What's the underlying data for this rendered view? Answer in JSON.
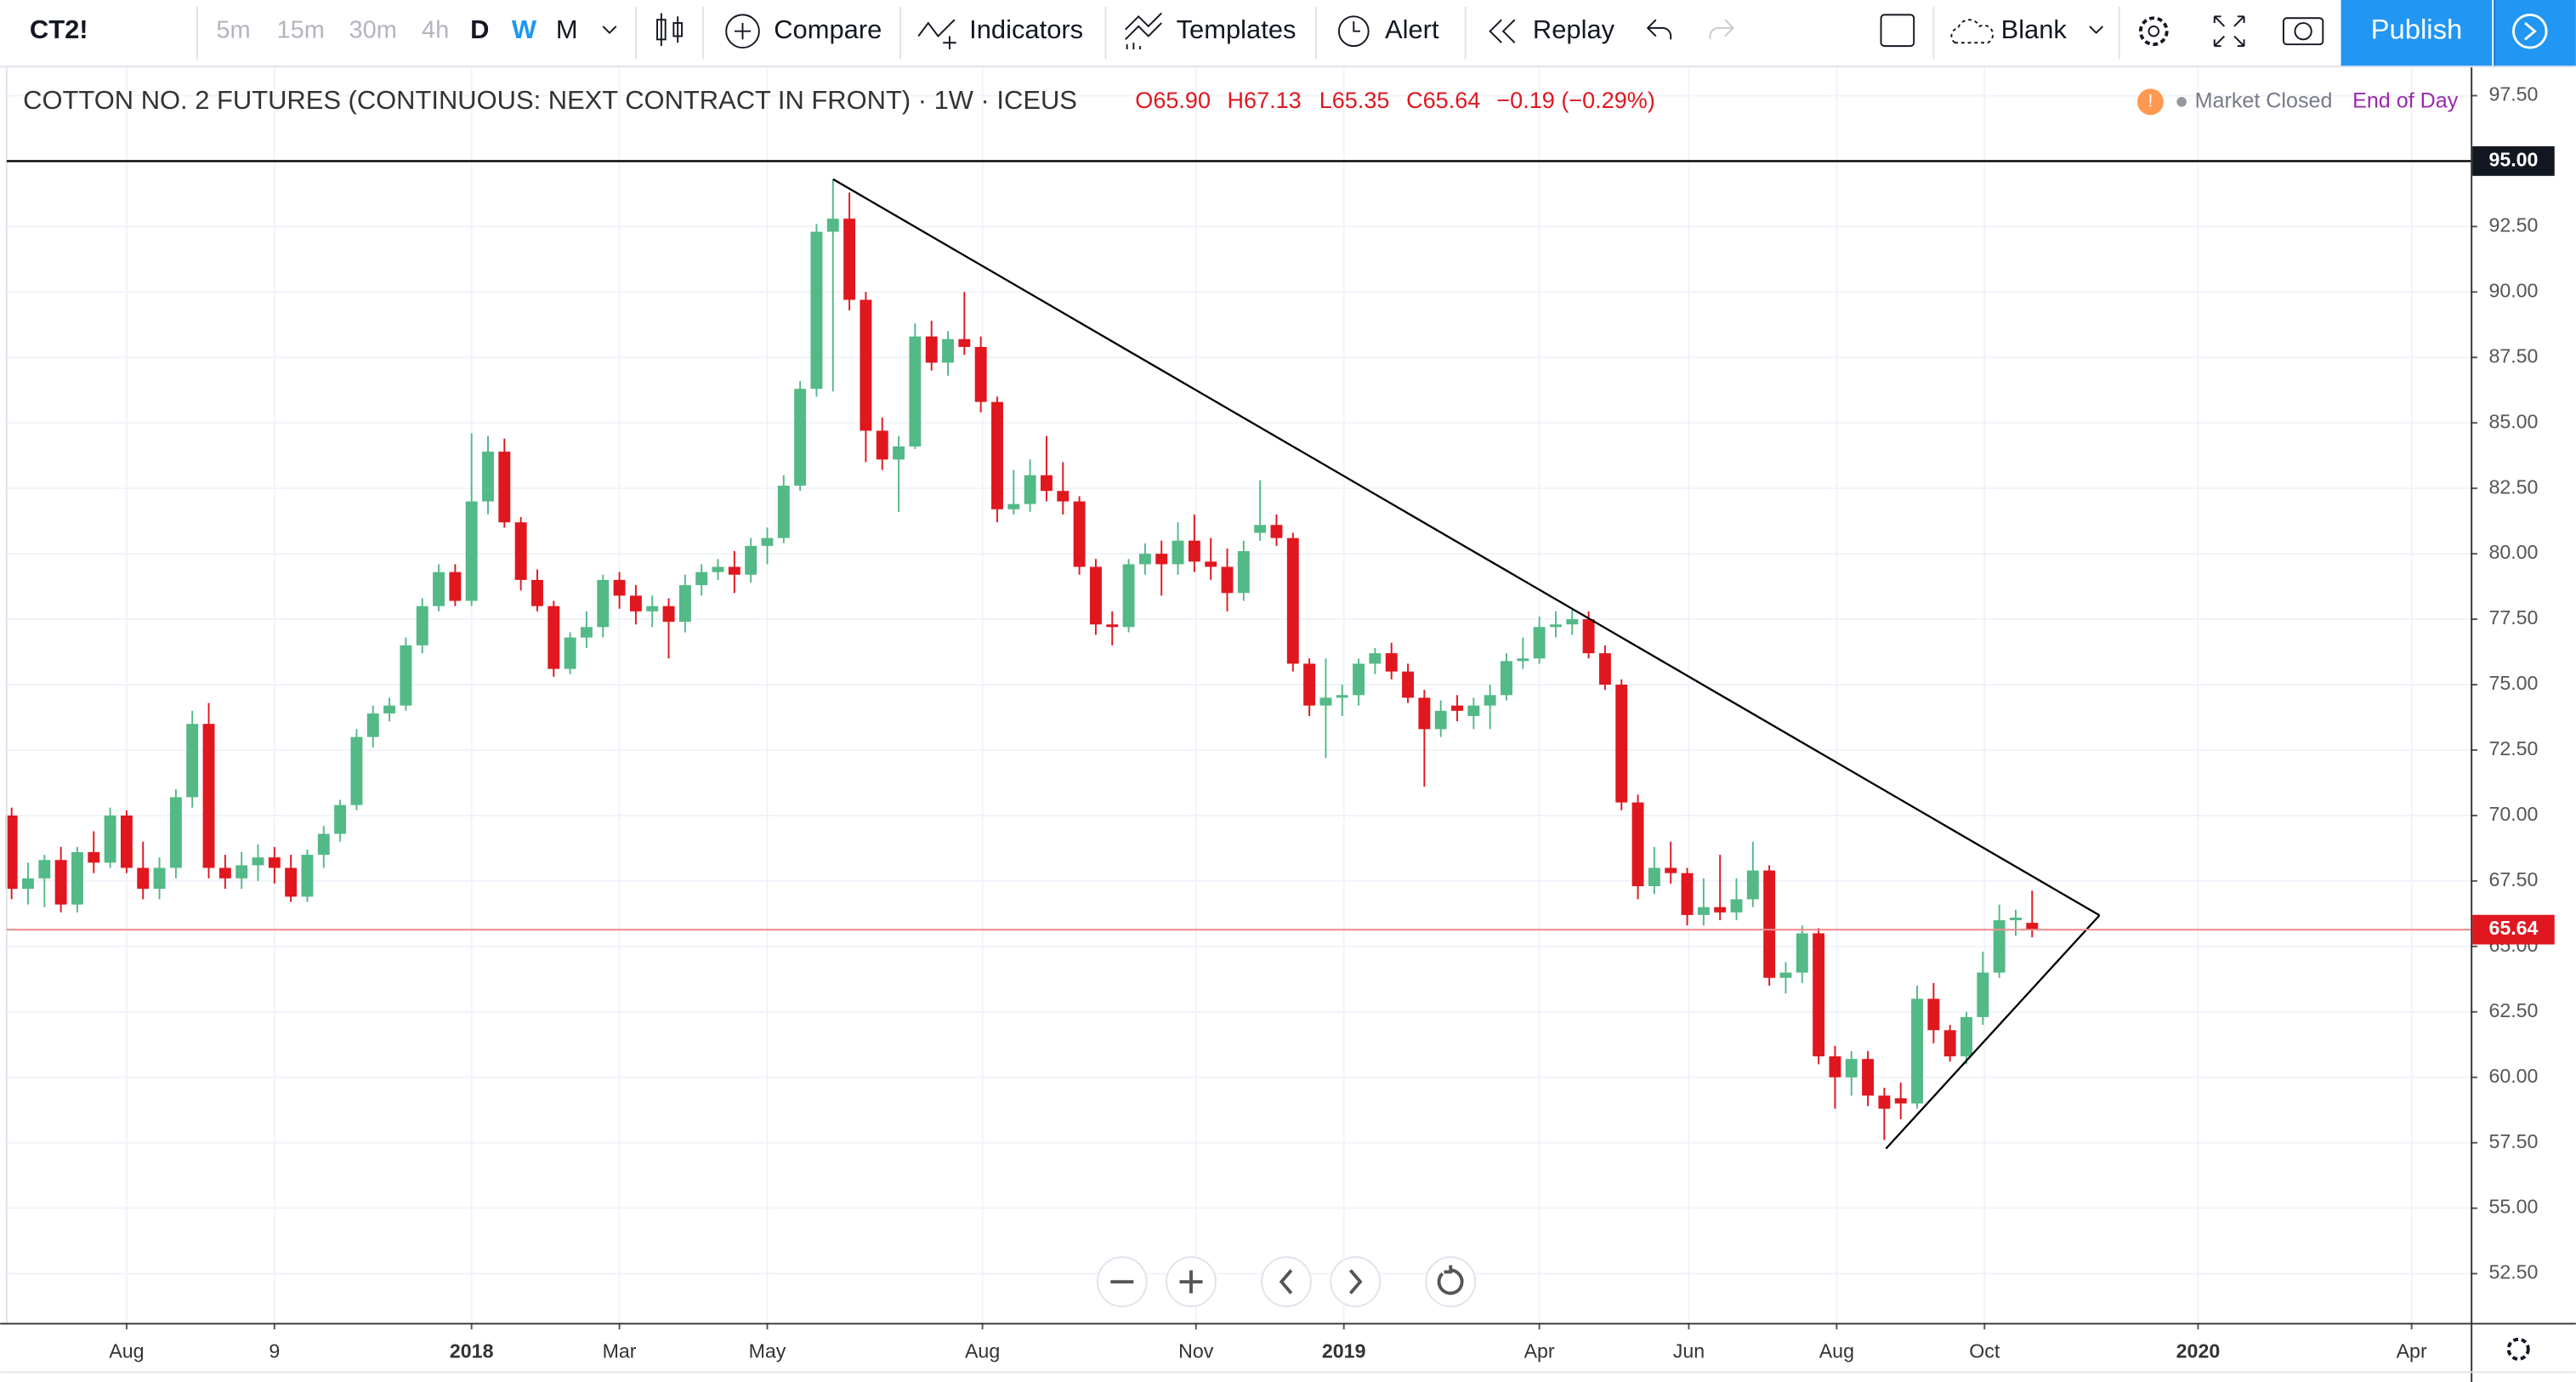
{
  "toolbar": {
    "symbol": "CT2!",
    "intervals": [
      "5m",
      "15m",
      "30m",
      "4h",
      "D",
      "W",
      "M"
    ],
    "compare": "Compare",
    "indicators": "Indicators",
    "templates": "Templates",
    "alert": "Alert",
    "replay": "Replay",
    "layout": "Blank",
    "publish": "Publish"
  },
  "status": {
    "market": "Market Closed",
    "feed": "End of Day"
  },
  "chart_data": {
    "type": "candlestick",
    "title": "COTTON NO. 2 FUTURES (CONTINUOUS: NEXT CONTRACT IN FRONT) · 1W · ICEUS",
    "ohlc_labels": [
      "O65.90",
      "H67.13",
      "L65.35",
      "C65.64",
      "−0.19 (−0.29%)"
    ],
    "up_color": "#53b987",
    "down_color": "#e0171f",
    "grid": true,
    "ylim": [
      50.62,
      98.58
    ],
    "yticks": [
      {
        "value": 52.5,
        "label": "52.50"
      },
      {
        "value": 55,
        "label": "55.00"
      },
      {
        "value": 57.5,
        "label": "57.50"
      },
      {
        "value": 60,
        "label": "60.00"
      },
      {
        "value": 62.5,
        "label": "62.50"
      },
      {
        "value": 65,
        "label": "65.00"
      },
      {
        "value": 67.5,
        "label": "67.50"
      },
      {
        "value": 70,
        "label": "70.00"
      },
      {
        "value": 72.5,
        "label": "72.50"
      },
      {
        "value": 75,
        "label": "75.00"
      },
      {
        "value": 77.5,
        "label": "77.50"
      },
      {
        "value": 80,
        "label": "80.00"
      },
      {
        "value": 82.5,
        "label": "82.50"
      },
      {
        "value": 85,
        "label": "85.00"
      },
      {
        "value": 87.5,
        "label": "87.50"
      },
      {
        "value": 90,
        "label": "90.00"
      },
      {
        "value": 92.5,
        "label": "92.50"
      },
      {
        "value": 95,
        "label": "95.00"
      },
      {
        "value": 97.5,
        "label": "97.50"
      }
    ],
    "xlim": [
      -0.3,
      149.7
    ],
    "xticks": [
      {
        "value": 7.0,
        "label": "Aug"
      },
      {
        "value": 16.0,
        "label": "9"
      },
      {
        "value": 28.0,
        "label": "2018"
      },
      {
        "value": 37.0,
        "label": "Mar"
      },
      {
        "value": 46.0,
        "label": "May"
      },
      {
        "value": 59.1,
        "label": "Aug"
      },
      {
        "value": 72.1,
        "label": "Nov"
      },
      {
        "value": 81.1,
        "label": "2019"
      },
      {
        "value": 93.0,
        "label": "Apr"
      },
      {
        "value": 102.1,
        "label": "Jun"
      },
      {
        "value": 111.1,
        "label": "Aug"
      },
      {
        "value": 120.1,
        "label": "Oct"
      },
      {
        "value": 133.1,
        "label": "2020"
      },
      {
        "value": 146.1,
        "label": "Apr"
      }
    ],
    "hline": {
      "value": 95,
      "label": "95.00"
    },
    "last_price": {
      "value": 65.64,
      "label": "65.64"
    },
    "candles": [
      [
        70.0,
        70.3,
        66.8,
        67.2
      ],
      [
        67.2,
        68.2,
        66.6,
        67.6
      ],
      [
        67.6,
        68.5,
        66.5,
        68.3
      ],
      [
        68.3,
        68.8,
        66.3,
        66.6
      ],
      [
        66.6,
        68.8,
        66.3,
        68.6
      ],
      [
        68.6,
        69.4,
        67.8,
        68.2
      ],
      [
        68.2,
        70.3,
        68.0,
        70.0
      ],
      [
        70.0,
        70.2,
        67.8,
        68.0
      ],
      [
        68.0,
        69.0,
        66.8,
        67.2
      ],
      [
        67.2,
        68.4,
        66.8,
        68.0
      ],
      [
        68.0,
        71.0,
        67.6,
        70.7
      ],
      [
        70.7,
        74.0,
        70.3,
        73.5
      ],
      [
        73.5,
        74.3,
        67.6,
        68.0
      ],
      [
        68.0,
        68.5,
        67.2,
        67.6
      ],
      [
        67.6,
        68.6,
        67.2,
        68.1
      ],
      [
        68.1,
        68.9,
        67.5,
        68.4
      ],
      [
        68.4,
        68.8,
        67.4,
        68.0
      ],
      [
        68.0,
        68.5,
        66.7,
        66.9
      ],
      [
        66.9,
        68.7,
        66.7,
        68.5
      ],
      [
        68.5,
        69.6,
        68.0,
        69.3
      ],
      [
        69.3,
        70.6,
        69.0,
        70.4
      ],
      [
        70.4,
        73.3,
        70.2,
        73.0
      ],
      [
        73.0,
        74.2,
        72.6,
        73.9
      ],
      [
        73.9,
        74.5,
        73.6,
        74.2
      ],
      [
        74.2,
        76.8,
        74.0,
        76.5
      ],
      [
        76.5,
        78.3,
        76.2,
        78.0
      ],
      [
        78.0,
        79.6,
        77.8,
        79.3
      ],
      [
        79.3,
        79.6,
        78.0,
        78.2
      ],
      [
        78.2,
        84.6,
        78.0,
        82.0
      ],
      [
        82.0,
        84.5,
        81.5,
        83.9
      ],
      [
        83.9,
        84.4,
        81.0,
        81.2
      ],
      [
        81.2,
        81.4,
        78.6,
        79.0
      ],
      [
        79.0,
        79.4,
        77.8,
        78.0
      ],
      [
        78.0,
        78.2,
        75.3,
        75.6
      ],
      [
        75.6,
        77.0,
        75.4,
        76.8
      ],
      [
        76.8,
        77.8,
        76.4,
        77.2
      ],
      [
        77.2,
        79.2,
        76.8,
        79.0
      ],
      [
        79.0,
        79.3,
        77.9,
        78.4
      ],
      [
        78.4,
        78.8,
        77.3,
        77.8
      ],
      [
        77.8,
        78.4,
        77.2,
        78.0
      ],
      [
        78.0,
        78.3,
        76.0,
        77.4
      ],
      [
        77.4,
        79.2,
        77.0,
        78.8
      ],
      [
        78.8,
        79.6,
        78.4,
        79.3
      ],
      [
        79.3,
        79.8,
        79.0,
        79.5
      ],
      [
        79.5,
        80.1,
        78.5,
        79.2
      ],
      [
        79.2,
        80.6,
        78.9,
        80.3
      ],
      [
        80.3,
        81.0,
        79.6,
        80.6
      ],
      [
        80.6,
        83.0,
        80.4,
        82.6
      ],
      [
        82.6,
        86.6,
        82.4,
        86.3
      ],
      [
        86.3,
        92.6,
        86.0,
        92.3
      ],
      [
        92.3,
        94.3,
        86.2,
        92.8
      ],
      [
        92.8,
        93.8,
        89.3,
        89.7
      ],
      [
        89.7,
        90.0,
        83.5,
        84.7
      ],
      [
        84.7,
        85.2,
        83.2,
        83.6
      ],
      [
        83.6,
        84.5,
        81.6,
        84.1
      ],
      [
        84.1,
        88.8,
        84.0,
        88.3
      ],
      [
        88.3,
        88.9,
        87.0,
        87.3
      ],
      [
        87.3,
        88.5,
        86.8,
        88.2
      ],
      [
        88.2,
        90.0,
        87.6,
        87.9
      ],
      [
        87.9,
        88.3,
        85.4,
        85.8
      ],
      [
        85.8,
        86.0,
        81.2,
        81.7
      ],
      [
        81.7,
        83.2,
        81.5,
        81.9
      ],
      [
        81.9,
        83.6,
        81.6,
        83.0
      ],
      [
        83.0,
        84.5,
        82.0,
        82.4
      ],
      [
        82.4,
        83.5,
        81.5,
        82.0
      ],
      [
        82.0,
        82.2,
        79.2,
        79.5
      ],
      [
        79.5,
        79.8,
        76.9,
        77.3
      ],
      [
        77.3,
        77.8,
        76.5,
        77.2
      ],
      [
        77.2,
        79.8,
        77.0,
        79.6
      ],
      [
        79.6,
        80.4,
        79.2,
        80.0
      ],
      [
        80.0,
        80.5,
        78.4,
        79.6
      ],
      [
        79.6,
        81.2,
        79.2,
        80.5
      ],
      [
        80.5,
        81.5,
        79.3,
        79.7
      ],
      [
        79.7,
        80.6,
        79.0,
        79.5
      ],
      [
        79.5,
        80.2,
        77.8,
        78.5
      ],
      [
        78.5,
        80.5,
        78.2,
        80.1
      ],
      [
        80.8,
        82.8,
        80.5,
        81.1
      ],
      [
        81.1,
        81.5,
        80.3,
        80.6
      ],
      [
        80.6,
        80.8,
        75.5,
        75.8
      ],
      [
        75.8,
        76.0,
        73.8,
        74.2
      ],
      [
        74.2,
        76.0,
        72.2,
        74.5
      ],
      [
        74.5,
        75.0,
        73.8,
        74.6
      ],
      [
        74.6,
        76.0,
        74.2,
        75.8
      ],
      [
        75.8,
        76.4,
        75.4,
        76.2
      ],
      [
        76.2,
        76.6,
        75.2,
        75.5
      ],
      [
        75.5,
        75.8,
        74.3,
        74.5
      ],
      [
        74.5,
        74.8,
        71.1,
        73.3
      ],
      [
        73.3,
        74.4,
        73.0,
        74.0
      ],
      [
        74.2,
        74.6,
        73.6,
        74.0
      ],
      [
        73.8,
        74.5,
        73.3,
        74.2
      ],
      [
        74.2,
        75.0,
        73.3,
        74.6
      ],
      [
        74.6,
        76.2,
        74.4,
        75.9
      ],
      [
        75.9,
        76.8,
        75.6,
        76.0
      ],
      [
        76.0,
        77.6,
        75.8,
        77.2
      ],
      [
        77.2,
        77.8,
        76.8,
        77.3
      ],
      [
        77.3,
        77.9,
        76.9,
        77.5
      ],
      [
        77.5,
        77.8,
        76.0,
        76.2
      ],
      [
        76.2,
        76.5,
        74.8,
        75.0
      ],
      [
        75.0,
        75.2,
        70.2,
        70.5
      ],
      [
        70.5,
        70.8,
        66.8,
        67.3
      ],
      [
        67.3,
        68.8,
        67.0,
        68.0
      ],
      [
        68.0,
        69.0,
        67.4,
        67.8
      ],
      [
        67.8,
        68.0,
        65.8,
        66.2
      ],
      [
        66.2,
        67.6,
        65.8,
        66.5
      ],
      [
        66.5,
        68.5,
        66.0,
        66.3
      ],
      [
        66.3,
        67.6,
        66.0,
        66.8
      ],
      [
        66.8,
        69.0,
        66.5,
        67.9
      ],
      [
        67.9,
        68.1,
        63.5,
        63.8
      ],
      [
        63.8,
        64.4,
        63.2,
        64.0
      ],
      [
        64.0,
        65.8,
        63.6,
        65.5
      ],
      [
        65.5,
        65.7,
        60.5,
        60.8
      ],
      [
        60.8,
        61.2,
        58.8,
        60.0
      ],
      [
        60.0,
        61.0,
        59.3,
        60.7
      ],
      [
        60.7,
        61.0,
        58.9,
        59.3
      ],
      [
        59.3,
        59.6,
        57.6,
        58.8
      ],
      [
        59.2,
        59.8,
        58.4,
        59.0
      ],
      [
        59.0,
        63.5,
        58.8,
        63.0
      ],
      [
        63.0,
        63.6,
        61.3,
        61.8
      ],
      [
        61.8,
        62.0,
        60.6,
        60.8
      ],
      [
        60.8,
        62.5,
        60.5,
        62.3
      ],
      [
        62.3,
        64.8,
        62.0,
        64.0
      ],
      [
        64.0,
        66.6,
        63.8,
        66.0
      ],
      [
        66.0,
        66.4,
        65.4,
        66.1
      ],
      [
        65.9,
        67.13,
        65.35,
        65.64
      ]
    ]
  }
}
